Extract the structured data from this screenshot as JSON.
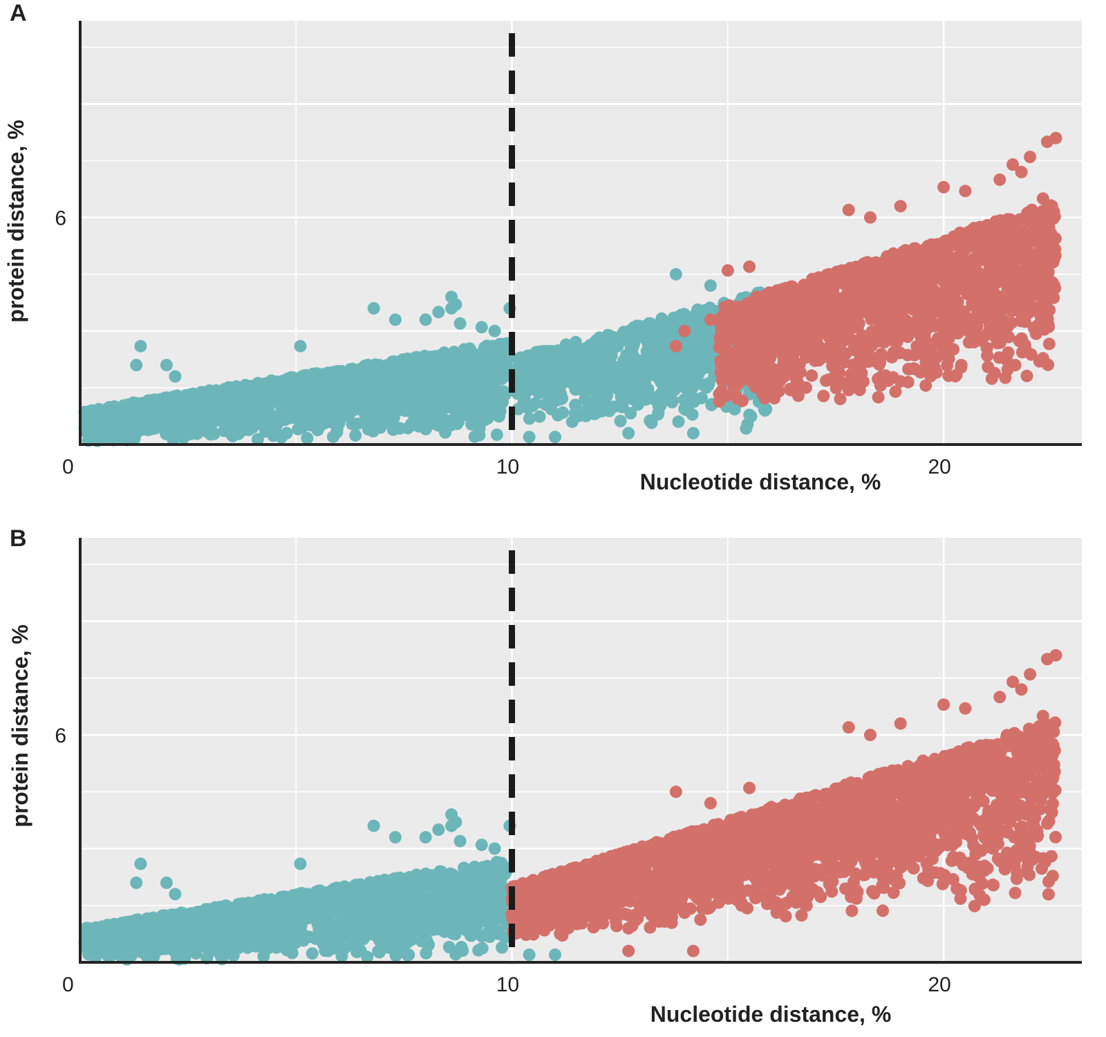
{
  "figure": {
    "colors": {
      "panel_background": "#ebebeb",
      "grid": "#ffffff",
      "axis": "#222222",
      "below_threshold": "#6cb6b9",
      "above_threshold": "#d4706a",
      "threshold_line": "#1a1a1a"
    }
  },
  "chart_data": [
    {
      "panel": "A",
      "type": "scatter",
      "xlabel": "Nucleotide distance, %",
      "ylabel": "protein distance, %",
      "xlim": [
        0,
        23.2
      ],
      "ylim": [
        0,
        11.2
      ],
      "x_ticks": [
        0,
        10,
        20
      ],
      "y_ticks": [
        6
      ],
      "threshold_x": 10,
      "grid": true,
      "series": [
        {
          "color": "#6cb6b9",
          "clusters": [
            {
              "x_range": [
                0.1,
                9.9
              ],
              "base_low": [
                0.0,
                0.1
              ],
              "base_high": [
                0.9,
                2.7
              ],
              "count": 1500
            },
            {
              "x_range": [
                10.1,
                16
              ],
              "base_low": [
                0.6,
                0.3
              ],
              "base_high": [
                2.3,
                4.1
              ],
              "count": 900
            }
          ],
          "points": [
            [
              1.4,
              2.6
            ],
            [
              1.3,
              2.1
            ],
            [
              2.0,
              2.1
            ],
            [
              2.2,
              1.8
            ],
            [
              5.1,
              2.6
            ],
            [
              6.8,
              3.6
            ],
            [
              7.3,
              3.3
            ],
            [
              8.0,
              3.3
            ],
            [
              8.3,
              3.5
            ],
            [
              8.6,
              3.6
            ],
            [
              8.7,
              3.7
            ],
            [
              8.6,
              3.9
            ],
            [
              8.8,
              3.2
            ],
            [
              9.3,
              3.1
            ],
            [
              9.6,
              3.0
            ],
            [
              9.95,
              3.6
            ],
            [
              9.6,
              2.1
            ],
            [
              9.9,
              1.9
            ],
            [
              10.4,
              0.2
            ],
            [
              11.0,
              0.2
            ],
            [
              13.8,
              4.5
            ],
            [
              14.6,
              4.2
            ],
            [
              14.2,
              0.3
            ],
            [
              12.7,
              0.3
            ]
          ]
        },
        {
          "color": "#d4706a",
          "clusters": [
            {
              "x_range": [
                14.8,
                22.6
              ],
              "base_low": [
                0.8,
                1.6
              ],
              "base_high": [
                3.6,
                6.4
              ],
              "count": 1800
            }
          ],
          "points": [
            [
              15.0,
              4.6
            ],
            [
              15.5,
              4.7
            ],
            [
              14.0,
              3.0
            ],
            [
              14.6,
              3.3
            ],
            [
              13.8,
              2.6
            ],
            [
              14.9,
              3.3
            ],
            [
              17.8,
              6.2
            ],
            [
              18.3,
              6.0
            ],
            [
              19.0,
              6.3
            ],
            [
              20.0,
              6.8
            ],
            [
              20.5,
              6.7
            ],
            [
              21.3,
              7.0
            ],
            [
              21.6,
              7.4
            ],
            [
              22.4,
              8.0
            ],
            [
              22.6,
              8.1
            ],
            [
              22.0,
              7.6
            ],
            [
              22.3,
              6.5
            ],
            [
              21.8,
              7.2
            ]
          ]
        }
      ]
    },
    {
      "panel": "B",
      "type": "scatter",
      "xlabel": "Nucleotide distance, %",
      "ylabel": "protein distance, %",
      "xlim": [
        0,
        23.2
      ],
      "ylim": [
        0,
        11.2
      ],
      "x_ticks": [
        0,
        10,
        20
      ],
      "y_ticks": [
        6
      ],
      "threshold_x": 10,
      "grid": true,
      "series": [
        {
          "color": "#6cb6b9",
          "clusters": [
            {
              "x_range": [
                0.1,
                9.9
              ],
              "base_low": [
                0.0,
                0.1
              ],
              "base_high": [
                0.9,
                2.7
              ],
              "count": 1500
            }
          ],
          "points": [
            [
              1.4,
              2.6
            ],
            [
              1.3,
              2.1
            ],
            [
              2.0,
              2.1
            ],
            [
              2.2,
              1.8
            ],
            [
              5.1,
              2.6
            ],
            [
              6.8,
              3.6
            ],
            [
              7.3,
              3.3
            ],
            [
              8.0,
              3.3
            ],
            [
              8.3,
              3.5
            ],
            [
              8.6,
              3.6
            ],
            [
              8.7,
              3.7
            ],
            [
              8.6,
              3.9
            ],
            [
              8.8,
              3.2
            ],
            [
              9.3,
              3.1
            ],
            [
              9.6,
              3.0
            ],
            [
              9.95,
              3.6
            ],
            [
              9.6,
              2.1
            ],
            [
              9.9,
              1.9
            ],
            [
              10.4,
              0.2
            ],
            [
              11.0,
              0.2
            ]
          ]
        },
        {
          "color": "#d4706a",
          "clusters": [
            {
              "x_range": [
                10.0,
                22.6
              ],
              "base_low": [
                0.6,
                1.6
              ],
              "base_high": [
                2.0,
                6.4
              ],
              "count": 2600
            }
          ],
          "points": [
            [
              13.8,
              4.5
            ],
            [
              14.6,
              4.2
            ],
            [
              15.5,
              4.6
            ],
            [
              12.7,
              0.3
            ],
            [
              14.2,
              0.3
            ],
            [
              17.8,
              6.2
            ],
            [
              18.3,
              6.0
            ],
            [
              19.0,
              6.3
            ],
            [
              20.0,
              6.8
            ],
            [
              20.5,
              6.7
            ],
            [
              21.3,
              7.0
            ],
            [
              21.6,
              7.4
            ],
            [
              22.4,
              8.0
            ],
            [
              22.6,
              8.1
            ],
            [
              22.0,
              7.6
            ],
            [
              22.3,
              6.5
            ],
            [
              21.8,
              7.2
            ]
          ]
        }
      ]
    }
  ]
}
